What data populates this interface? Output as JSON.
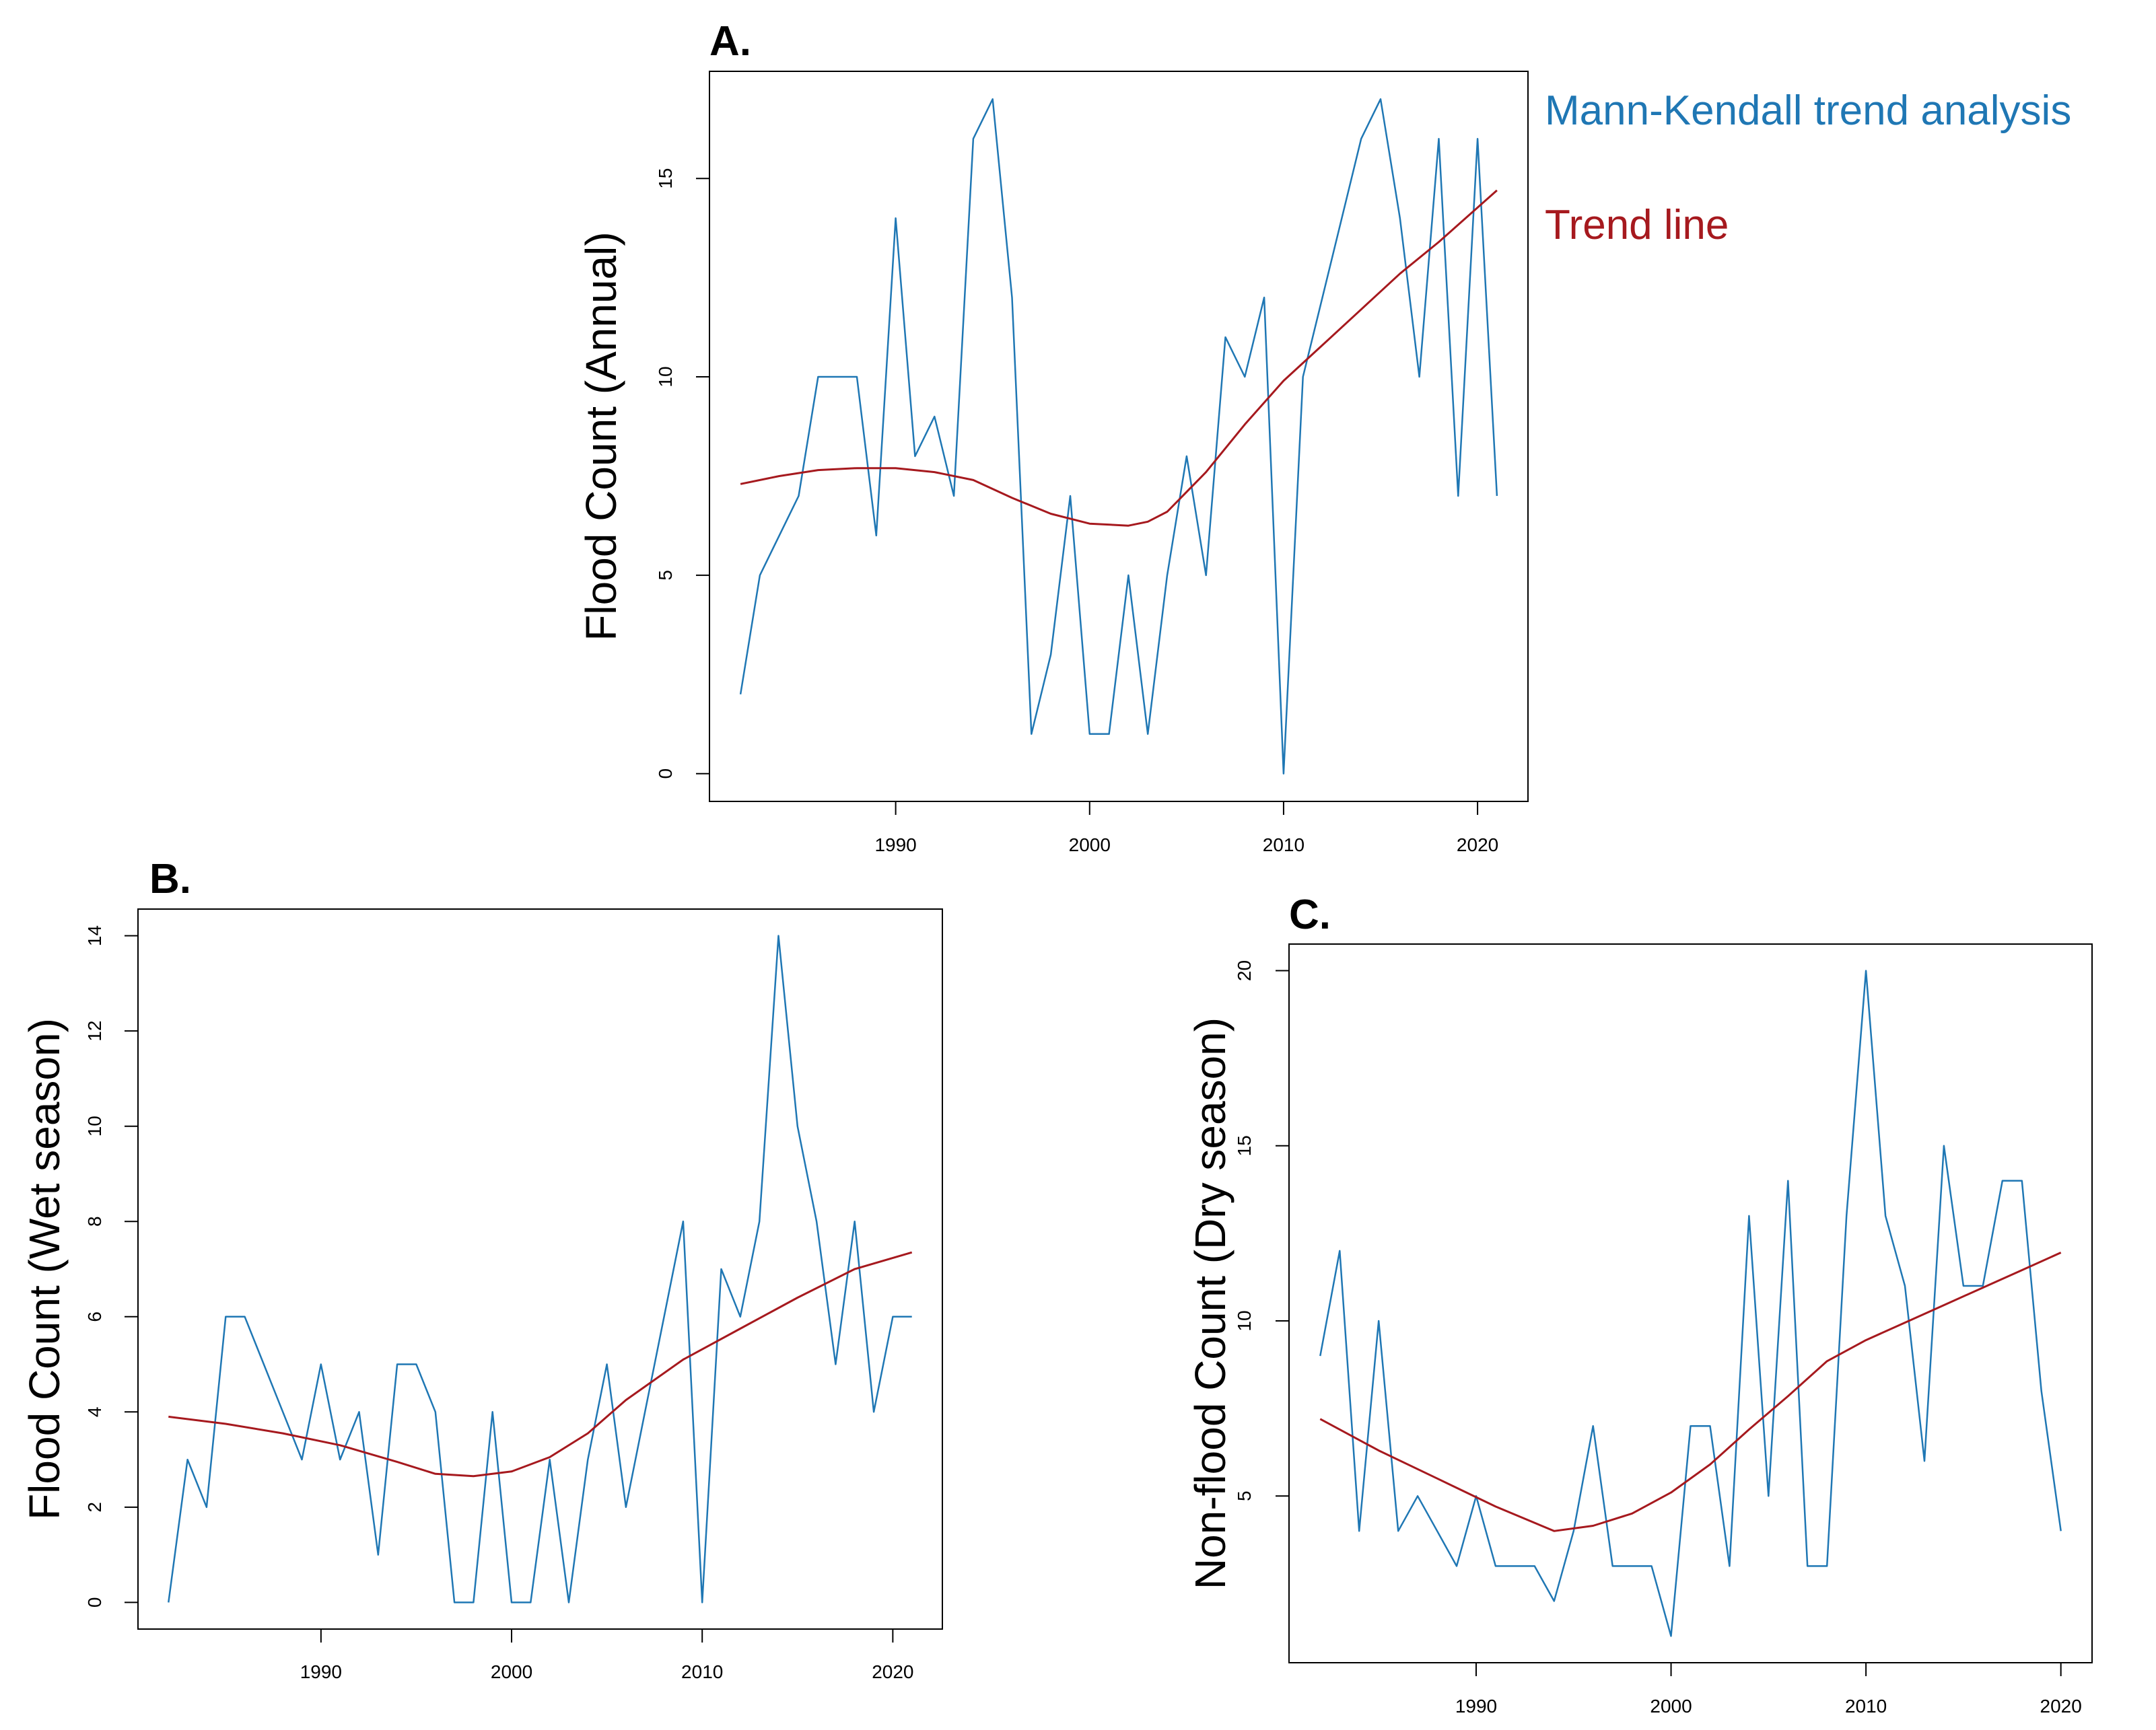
{
  "colors": {
    "series": "#1f77b4",
    "trend": "#a6191e",
    "axis": "#000000"
  },
  "chart_data": [
    {
      "id": "A",
      "type": "line",
      "panel_label": "A.",
      "ylabel": "Flood Count (Annual)",
      "xlabel": "",
      "xlim": [
        1980.4,
        2022.6
      ],
      "ylim": [
        -0.7,
        17.7
      ],
      "xticks": [
        1990,
        2000,
        2010,
        2020
      ],
      "yticks": [
        0,
        5,
        10,
        15
      ],
      "legend": [
        {
          "label": "Mann-Kendall trend analysis",
          "color": "#1f77b4"
        },
        {
          "label": "Trend line",
          "color": "#a6191e"
        }
      ],
      "series": [
        {
          "name": "Mann-Kendall trend analysis",
          "color": "#1f77b4",
          "x": [
            1982,
            1983,
            1984,
            1985,
            1986,
            1987,
            1988,
            1989,
            1990,
            1991,
            1992,
            1993,
            1994,
            1995,
            1996,
            1997,
            1998,
            1999,
            2000,
            2001,
            2002,
            2003,
            2004,
            2005,
            2006,
            2007,
            2008,
            2009,
            2010,
            2011,
            2012,
            2013,
            2014,
            2015,
            2016,
            2017,
            2018,
            2019,
            2020,
            2021
          ],
          "values": [
            2,
            5,
            6,
            7,
            10,
            10,
            10,
            6,
            14,
            8,
            9,
            7,
            16,
            17,
            12,
            1,
            3,
            7,
            1,
            1,
            5,
            1,
            5,
            8,
            5,
            11,
            10,
            12,
            0,
            10,
            12,
            14,
            16,
            17,
            14,
            10,
            16,
            7,
            16,
            7
          ]
        },
        {
          "name": "Trend line",
          "color": "#a6191e",
          "x": [
            1982,
            1984,
            1986,
            1988,
            1990,
            1992,
            1994,
            1996,
            1998,
            2000,
            2002,
            2003,
            2004,
            2006,
            2008,
            2010,
            2012,
            2014,
            2016,
            2018,
            2021
          ],
          "values": [
            7.3,
            7.5,
            7.65,
            7.7,
            7.7,
            7.6,
            7.4,
            6.95,
            6.55,
            6.3,
            6.25,
            6.35,
            6.6,
            7.6,
            8.8,
            9.9,
            10.8,
            11.7,
            12.6,
            13.4,
            14.7
          ]
        }
      ]
    },
    {
      "id": "B",
      "type": "line",
      "panel_label": "B.",
      "ylabel": "Flood Count (Wet season)",
      "xlabel": "",
      "xlim": [
        1980.4,
        2022.6
      ],
      "ylim": [
        -0.56,
        14.56
      ],
      "xticks": [
        1990,
        2000,
        2010,
        2020
      ],
      "yticks": [
        0,
        2,
        4,
        6,
        8,
        10,
        12,
        14
      ],
      "series": [
        {
          "name": "Wet season flood count",
          "color": "#1f77b4",
          "x": [
            1982,
            1983,
            1984,
            1985,
            1986,
            1987,
            1988,
            1989,
            1990,
            1991,
            1992,
            1993,
            1994,
            1995,
            1996,
            1997,
            1998,
            1999,
            2000,
            2001,
            2002,
            2003,
            2004,
            2005,
            2006,
            2007,
            2008,
            2009,
            2010,
            2011,
            2012,
            2013,
            2014,
            2015,
            2016,
            2017,
            2018,
            2019,
            2020,
            2021
          ],
          "values": [
            0,
            3,
            2,
            6,
            6,
            5,
            4,
            3,
            5,
            3,
            4,
            1,
            5,
            5,
            4,
            0,
            0,
            4,
            0,
            0,
            3,
            0,
            3,
            5,
            2,
            4,
            6,
            8,
            0,
            7,
            6,
            8,
            14,
            10,
            8,
            5,
            8,
            4,
            6,
            6
          ]
        },
        {
          "name": "Trend line",
          "color": "#a6191e",
          "x": [
            1982,
            1985,
            1988,
            1991,
            1994,
            1996,
            1998,
            2000,
            2002,
            2004,
            2006,
            2009,
            2012,
            2015,
            2018,
            2021
          ],
          "values": [
            3.9,
            3.75,
            3.55,
            3.3,
            2.95,
            2.7,
            2.65,
            2.75,
            3.05,
            3.55,
            4.25,
            5.1,
            5.75,
            6.4,
            7.0,
            7.35
          ]
        }
      ]
    },
    {
      "id": "C",
      "type": "line",
      "panel_label": "C.",
      "ylabel": "Non-flood Count (Dry season)",
      "xlabel": "",
      "xlim": [
        1980.4,
        2021.6
      ],
      "ylim": [
        0.24,
        20.76
      ],
      "xticks": [
        1990,
        2000,
        2010,
        2020
      ],
      "yticks": [
        5,
        10,
        15,
        20
      ],
      "series": [
        {
          "name": "Dry season non-flood count",
          "color": "#1f77b4",
          "x": [
            1982,
            1983,
            1984,
            1985,
            1986,
            1987,
            1988,
            1989,
            1990,
            1991,
            1992,
            1993,
            1994,
            1995,
            1996,
            1997,
            1998,
            1999,
            2000,
            2001,
            2002,
            2003,
            2004,
            2005,
            2006,
            2007,
            2008,
            2009,
            2010,
            2011,
            2012,
            2013,
            2014,
            2015,
            2016,
            2017,
            2018,
            2019,
            2020
          ],
          "values": [
            9,
            12,
            4,
            10,
            4,
            5,
            4,
            3,
            5,
            3,
            3,
            3,
            2,
            4,
            7,
            3,
            3,
            3,
            1,
            7,
            7,
            3,
            13,
            5,
            14,
            3,
            3,
            13,
            20,
            13,
            11,
            6,
            15,
            11,
            11,
            14,
            14,
            8,
            4
          ]
        },
        {
          "name": "Trend line",
          "color": "#a6191e",
          "x": [
            1982,
            1985,
            1988,
            1991,
            1994,
            1996,
            1998,
            2000,
            2002,
            2004,
            2006,
            2008,
            2010,
            2012,
            2014,
            2016,
            2018,
            2020
          ],
          "values": [
            7.2,
            6.3,
            5.5,
            4.7,
            4.0,
            4.15,
            4.5,
            5.1,
            5.9,
            6.9,
            7.85,
            8.85,
            9.45,
            9.95,
            10.45,
            10.95,
            11.45,
            11.95
          ]
        }
      ]
    }
  ]
}
